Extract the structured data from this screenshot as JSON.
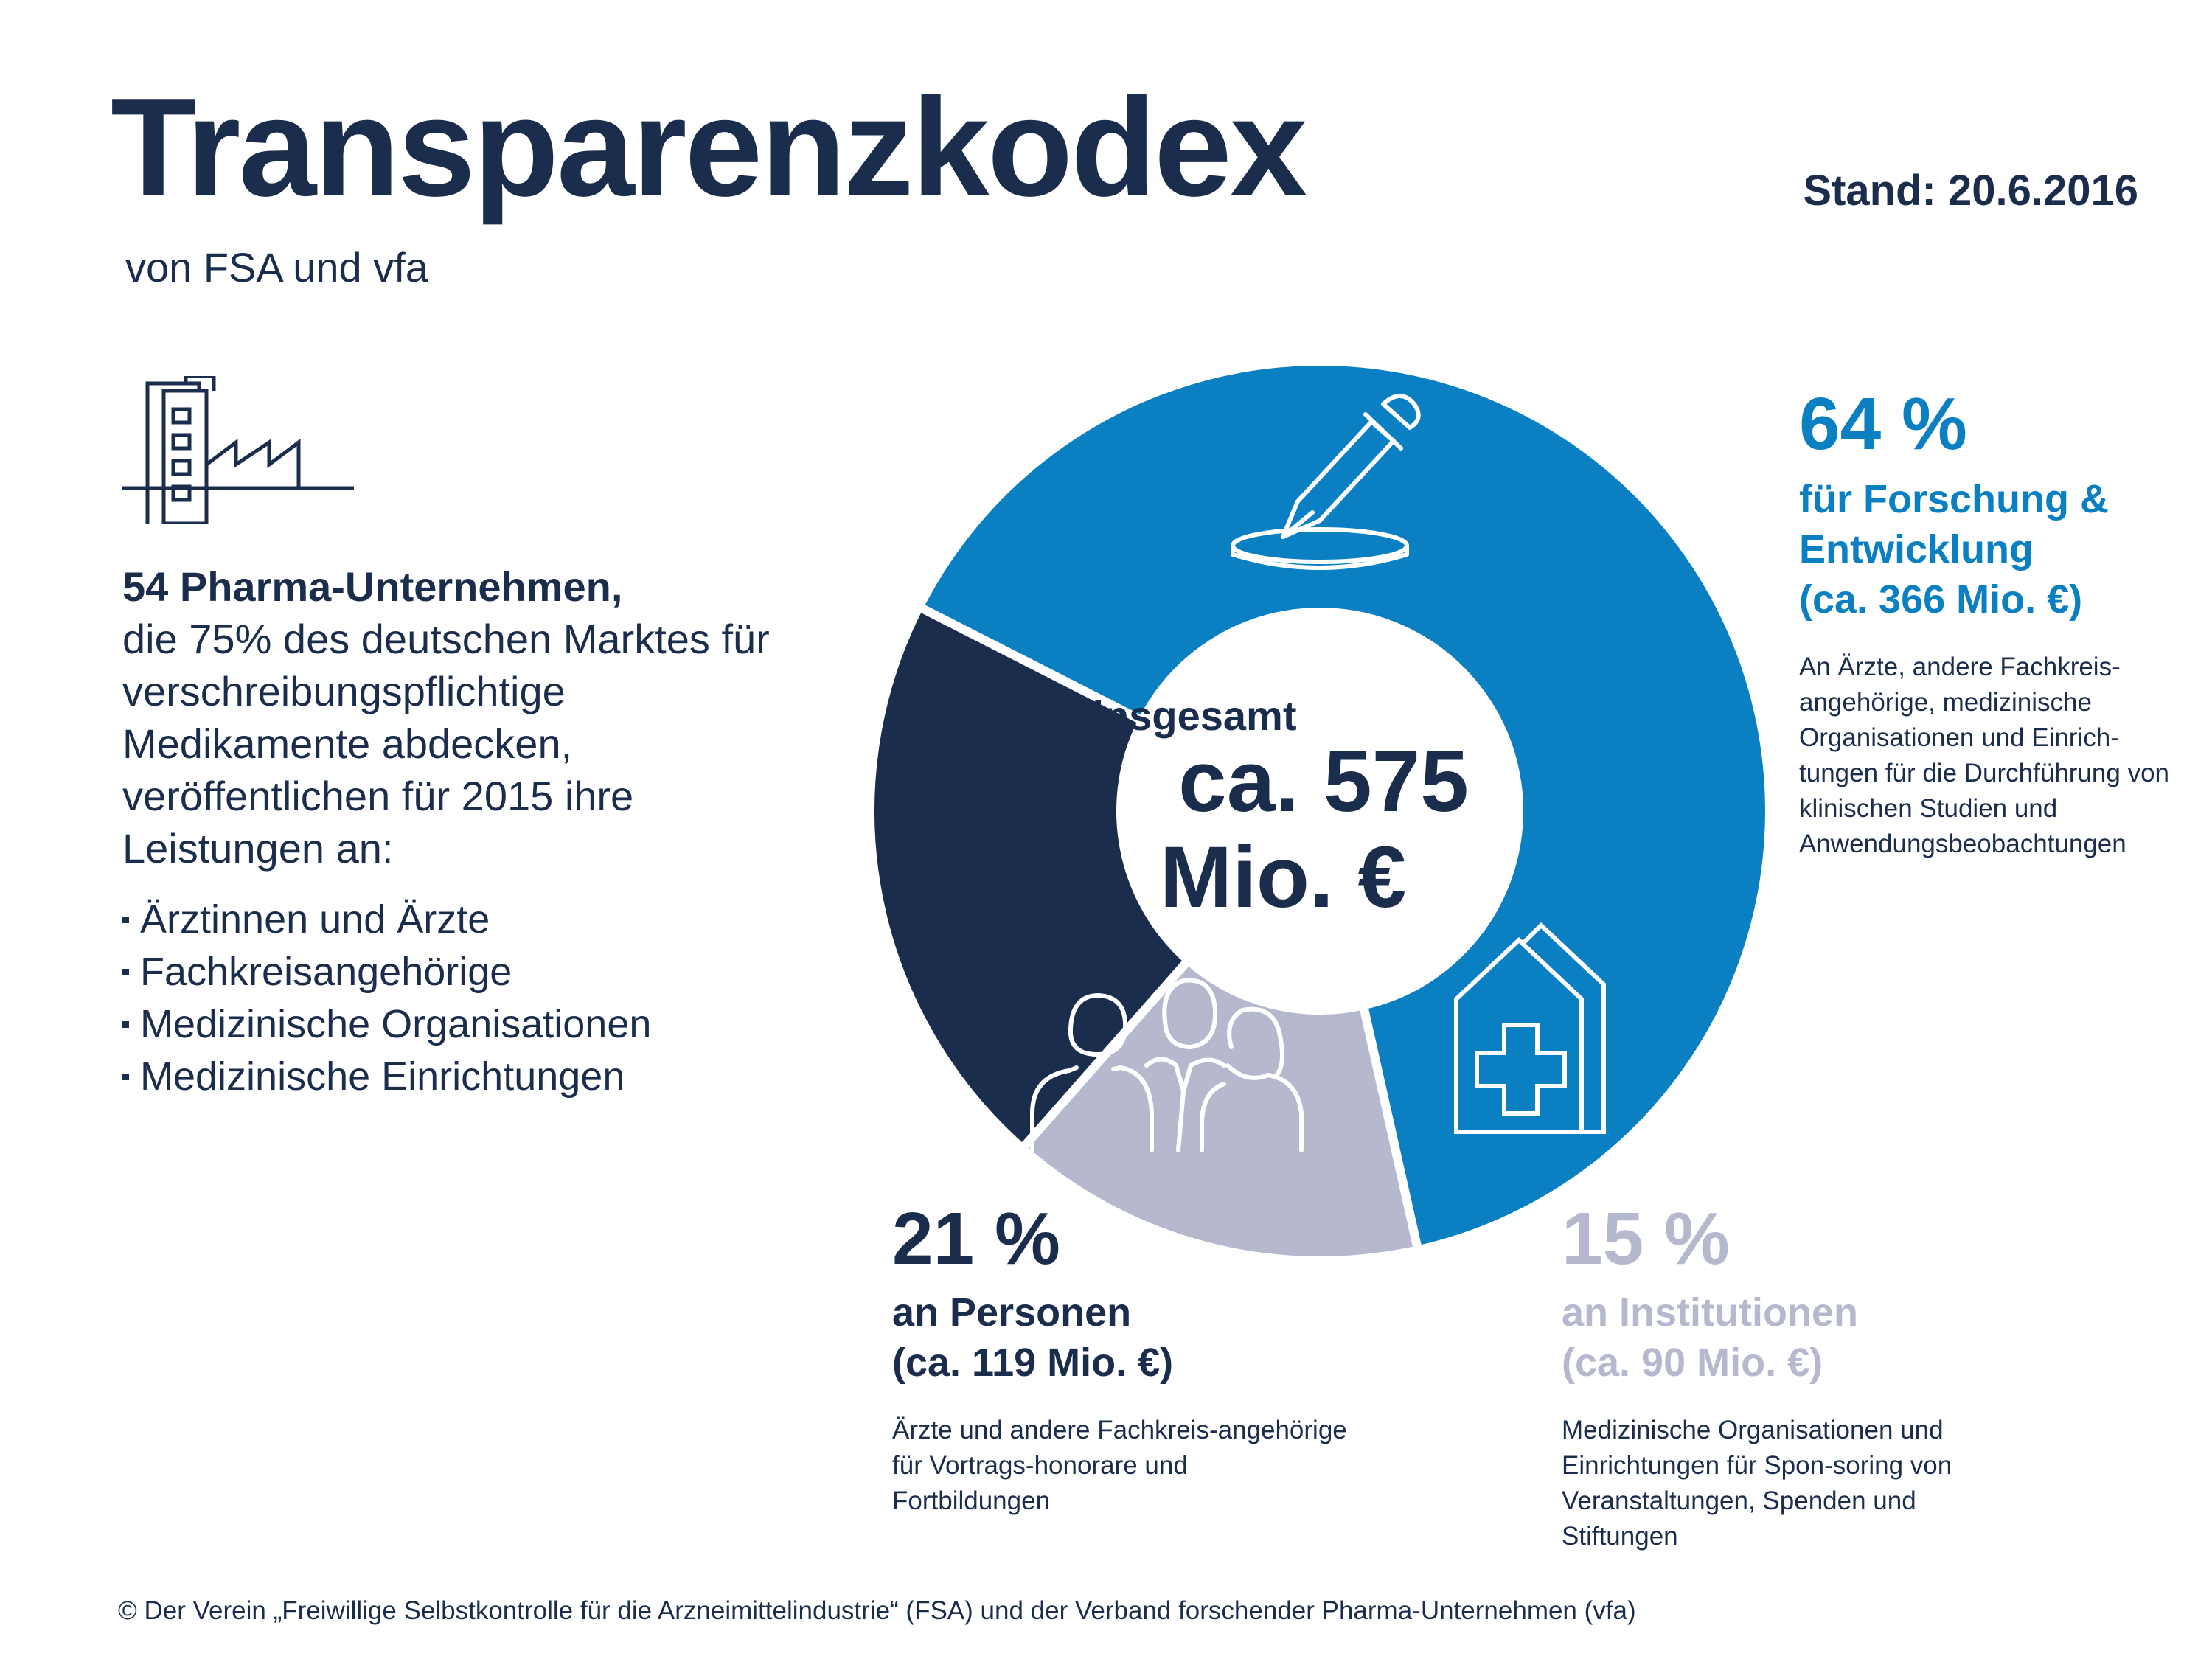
{
  "header": {
    "title": "Transparenzkodex",
    "subtitle": "von FSA und vfa",
    "stand": "Stand: 20.6.2016"
  },
  "intro": {
    "bold": "54 Pharma-Unternehmen,",
    "text": "die 75% des deutschen Marktes für verschreibungspflichtige Medikamente abdecken, veröffentlichen für 2015 ihre Leistungen an:",
    "bullets": [
      "Ärztinnen und Ärzte",
      "Fachkreisangehörige",
      "Medizinische Organisationen",
      "Medizinische Einrichtungen"
    ],
    "icon": "factory-icon"
  },
  "chart_data": {
    "type": "pie",
    "center_label": "insgesamt",
    "center_value_line1": "ca. 575",
    "center_value_line2": "Mio. €",
    "series": [
      {
        "percent_label": "64 %",
        "value": 64,
        "label_line1": "für Forschung &",
        "label_line2": "Entwicklung",
        "amount": "(ca. 366 Mio. €)",
        "description": "An Ärzte, andere Fachkreis-angehörige, medizinische Organisationen und Einrich-tungen für die Durchführung von klinischen Studien und Anwendungsbeobachtungen",
        "color": "#0a80c3",
        "icon": "pipette-icon"
      },
      {
        "percent_label": "15 %",
        "value": 15,
        "label_line1": "an Institutionen",
        "amount": "(ca. 90 Mio. €)",
        "description": "Medizinische Organisationen und Einrichtungen für Spon-soring von Veranstaltungen, Spenden und Stiftungen",
        "color": "#b6b8ce",
        "icon": "hospital-icon"
      },
      {
        "percent_label": "21 %",
        "value": 21,
        "label_line1": "an Personen",
        "amount": "(ca. 119 Mio. €)",
        "description": "Ärzte und andere Fachkreis-angehörige für Vortrags-honorare und Fortbildungen",
        "color": "#1a2d4d",
        "icon": "people-icon"
      }
    ]
  },
  "footer": {
    "copyright": "© Der Verein „Freiwillige Selbstkontrolle für die Arzneimittelindustrie“ (FSA) und der Verband forschender Pharma-Unternehmen (vfa)"
  }
}
